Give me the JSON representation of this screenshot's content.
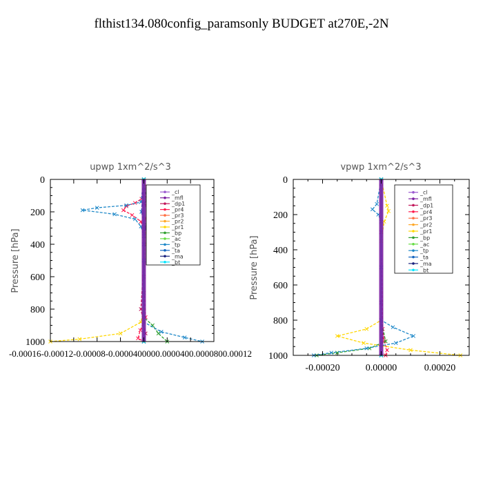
{
  "page": {
    "title": "flthist134.080config_paramsonly  BUDGET at270E,-2N"
  },
  "legend_entries": [
    {
      "label": "_cl",
      "color": "#9b59d0",
      "marker": "o"
    },
    {
      "label": "_mfl",
      "color": "#7b1fa2",
      "marker": "o"
    },
    {
      "label": "_dp1",
      "color": "#c2185b",
      "marker": "o"
    },
    {
      "label": "_pr4",
      "color": "#ff1a4d",
      "marker": "x"
    },
    {
      "label": "_pr3",
      "color": "#ff7043",
      "marker": "*"
    },
    {
      "label": "_pr2",
      "color": "#ffa726",
      "marker": "+"
    },
    {
      "label": "_pr1",
      "color": "#ffd600",
      "marker": "o"
    },
    {
      "label": "_bp",
      "color": "#2e9e2e",
      "marker": "x"
    },
    {
      "label": "_ac",
      "color": "#66dd44",
      "marker": "*"
    },
    {
      "label": "_tp",
      "color": "#1e88c8",
      "marker": "x"
    },
    {
      "label": "_ta",
      "color": "#1565c0",
      "marker": "x"
    },
    {
      "label": "_ma",
      "color": "#1a237e",
      "marker": "-"
    },
    {
      "label": "_bt",
      "color": "#00e5ff",
      "marker": "o"
    }
  ],
  "chart_data": [
    {
      "type": "line",
      "title": "upwp   1xm^2/s^3",
      "ylabel": "Pressure [hPa]",
      "xlabel": "",
      "ylim": [
        1000,
        0
      ],
      "xlim": [
        -0.00016,
        0.00012
      ],
      "yticks": [
        0,
        200,
        400,
        600,
        800,
        1000
      ],
      "ytick_labels": [
        "0",
        "200",
        "400",
        "600",
        "800",
        "1000"
      ],
      "xtick_labels_text": "-0.00016-0.00012-0.00008-0.0000400000.0000400.0000800.00012",
      "legend_position": "upper-right",
      "series": [
        {
          "name": "_cl",
          "color": "#9b59d0",
          "x": [
            0,
            0,
            0,
            0,
            0,
            0,
            0
          ],
          "y": [
            0,
            150,
            300,
            500,
            700,
            850,
            1000
          ]
        },
        {
          "name": "_mfl",
          "color": "#7b1fa2",
          "x": [
            0,
            0,
            0,
            0,
            0,
            0,
            0
          ],
          "y": [
            0,
            150,
            300,
            500,
            700,
            850,
            1000
          ]
        },
        {
          "name": "_dp1",
          "color": "#c2185b",
          "x": [
            0,
            0,
            0,
            0,
            -5e-06,
            3e-06,
            0
          ],
          "y": [
            0,
            150,
            300,
            500,
            800,
            950,
            1000
          ]
        },
        {
          "name": "_pr4",
          "color": "#ff1a4d",
          "x": [
            0,
            -4e-06,
            -1.5e-05,
            -3e-05,
            -3.5e-05,
            -2e-05,
            -5e-06,
            0,
            0,
            3e-06,
            -6e-06,
            -1e-05,
            0
          ],
          "y": [
            0,
            120,
            145,
            165,
            190,
            220,
            260,
            320,
            600,
            850,
            930,
            980,
            1000
          ]
        },
        {
          "name": "_pr3",
          "color": "#ff7043",
          "x": [
            0,
            5e-06,
            1e-05,
            3e-06,
            0,
            0
          ],
          "y": [
            0,
            160,
            200,
            240,
            300,
            1000
          ]
        },
        {
          "name": "_pr2",
          "color": "#ffa726",
          "x": [
            0,
            0,
            0,
            0
          ],
          "y": [
            0,
            300,
            700,
            1000
          ]
        },
        {
          "name": "_pr1",
          "color": "#ffd600",
          "x": [
            0,
            1e-05,
            4e-05,
            7.5e-05,
            4e-05,
            1e-05,
            3e-06,
            2e-06,
            0,
            -5e-06,
            -4e-05,
            -0.00011,
            -0.00016
          ],
          "y": [
            0,
            120,
            150,
            185,
            215,
            250,
            300,
            400,
            800,
            880,
            950,
            985,
            1000
          ]
        },
        {
          "name": "_bp",
          "color": "#2e9e2e",
          "x": [
            0,
            5e-06,
            2.5e-05,
            4.5e-05,
            1.5e-05,
            5e-06,
            0,
            0,
            1.5e-05,
            2.5e-05,
            4e-05
          ],
          "y": [
            0,
            130,
            160,
            190,
            230,
            280,
            350,
            850,
            900,
            950,
            1000
          ]
        },
        {
          "name": "_ac",
          "color": "#66dd44",
          "x": [
            0,
            0,
            0,
            0
          ],
          "y": [
            0,
            300,
            700,
            1000
          ]
        },
        {
          "name": "_tp",
          "color": "#1e88c8",
          "x": [
            0,
            -5e-06,
            -3e-05,
            -8e-05,
            -0.000105,
            -5e-05,
            -1.5e-05,
            -5e-06,
            0,
            0,
            3e-05,
            7e-05,
            0.0001
          ],
          "y": [
            0,
            140,
            160,
            175,
            190,
            215,
            245,
            290,
            350,
            880,
            940,
            975,
            1000
          ]
        },
        {
          "name": "_ta",
          "color": "#1565c0",
          "x": [
            0,
            -4e-06,
            2e-06,
            0,
            0
          ],
          "y": [
            0,
            200,
            300,
            400,
            1000
          ]
        },
        {
          "name": "_ma",
          "color": "#1a237e",
          "x": [
            0,
            0,
            0
          ],
          "y": [
            0,
            500,
            1000
          ]
        },
        {
          "name": "_bt",
          "color": "#00e5ff",
          "x": [
            0,
            0,
            0
          ],
          "y": [
            0,
            500,
            1000
          ]
        }
      ]
    },
    {
      "type": "line",
      "title": "vpwp   1xm^2/s^3",
      "ylabel": "Pressure [hPa]",
      "xlabel": "",
      "ylim": [
        1000,
        0
      ],
      "xlim": [
        -0.0003,
        0.0003
      ],
      "yticks": [
        0,
        200,
        400,
        600,
        800,
        1000
      ],
      "ytick_labels": [
        "0",
        "200",
        "400",
        "600",
        "800",
        "1000"
      ],
      "xticks": [
        -0.0002,
        0,
        0.0002
      ],
      "xtick_labels": [
        "-0.00020",
        "0.00000",
        "0.00020"
      ],
      "legend_position": "upper-right",
      "series": [
        {
          "name": "_cl",
          "color": "#9b59d0",
          "x": [
            0,
            0,
            0,
            0
          ],
          "y": [
            0,
            300,
            700,
            1000
          ]
        },
        {
          "name": "_mfl",
          "color": "#7b1fa2",
          "x": [
            0,
            0,
            0,
            0
          ],
          "y": [
            0,
            300,
            700,
            1000
          ]
        },
        {
          "name": "_dp1",
          "color": "#c2185b",
          "x": [
            0,
            0,
            5e-06,
            0
          ],
          "y": [
            0,
            300,
            900,
            1000
          ]
        },
        {
          "name": "_pr4",
          "color": "#ff1a4d",
          "x": [
            0,
            0,
            5e-06,
            1e-05,
            2e-05,
            1.5e-05
          ],
          "y": [
            0,
            300,
            850,
            920,
            970,
            1000
          ]
        },
        {
          "name": "_pr3",
          "color": "#ff7043",
          "x": [
            0,
            0,
            0
          ],
          "y": [
            0,
            500,
            1000
          ]
        },
        {
          "name": "_pr2",
          "color": "#ffa726",
          "x": [
            0,
            0,
            0
          ],
          "y": [
            0,
            500,
            1000
          ]
        },
        {
          "name": "_pr1",
          "color": "#ffd600",
          "x": [
            0,
            2e-05,
            2.5e-05,
            1e-05,
            0,
            0,
            -5e-05,
            -0.00015,
            -6e-05,
            0.0001,
            0.00027
          ],
          "y": [
            0,
            150,
            180,
            240,
            350,
            800,
            850,
            890,
            930,
            970,
            1000
          ]
        },
        {
          "name": "_bp",
          "color": "#2e9e2e",
          "x": [
            0,
            0,
            1.5e-05,
            -4e-05,
            -0.00015,
            -0.00022
          ],
          "y": [
            0,
            800,
            920,
            960,
            985,
            1000
          ]
        },
        {
          "name": "_ac",
          "color": "#66dd44",
          "x": [
            0,
            0,
            0
          ],
          "y": [
            0,
            500,
            1000
          ]
        },
        {
          "name": "_tp",
          "color": "#1e88c8",
          "x": [
            0,
            -1.5e-05,
            -3e-05,
            -1e-05,
            0,
            0,
            4e-05,
            0.00011,
            5e-05,
            -5e-05,
            -0.00017,
            -0.00023
          ],
          "y": [
            0,
            140,
            170,
            200,
            240,
            800,
            840,
            890,
            930,
            960,
            985,
            1000
          ]
        },
        {
          "name": "_ta",
          "color": "#1565c0",
          "x": [
            0,
            0,
            0
          ],
          "y": [
            0,
            500,
            1000
          ]
        },
        {
          "name": "_ma",
          "color": "#1a237e",
          "x": [
            0,
            0,
            0
          ],
          "y": [
            0,
            500,
            1000
          ]
        },
        {
          "name": "_bt",
          "color": "#00e5ff",
          "x": [
            0,
            0,
            0
          ],
          "y": [
            0,
            500,
            1000
          ]
        }
      ]
    }
  ]
}
